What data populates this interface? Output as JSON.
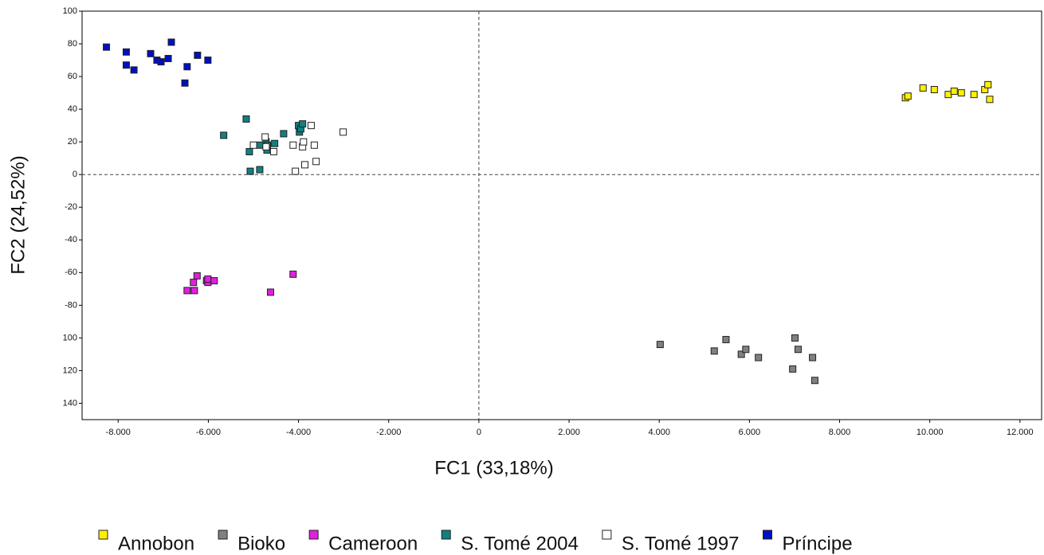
{
  "chart_data": {
    "type": "scatter",
    "x_label": "FC1 (33,18%)",
    "y_label": "FC2 (24,52%)",
    "xlim": [
      -8800,
      12480
    ],
    "ylim": [
      -150,
      100
    ],
    "xticks": [
      {
        "value": -8000,
        "label": "-8.000"
      },
      {
        "value": -6000,
        "label": "-6.000"
      },
      {
        "value": -4000,
        "label": "-4.000"
      },
      {
        "value": -2000,
        "label": "-2.000"
      },
      0,
      {
        "value": 2000,
        "label": "2.000"
      },
      {
        "value": 4000,
        "label": "4.000"
      },
      {
        "value": 6000,
        "label": "6.000"
      },
      {
        "value": 8000,
        "label": "8.000"
      },
      {
        "value": 10000,
        "label": "10.000"
      },
      {
        "value": 12000,
        "label": "12.000"
      }
    ],
    "yticks": [
      100,
      80,
      60,
      40,
      20,
      0,
      -20,
      -40,
      -60,
      -80,
      {
        "value": -100,
        "label": "100"
      },
      {
        "value": -120,
        "label": "120"
      },
      {
        "value": -140,
        "label": "140"
      }
    ],
    "origin_lines": true,
    "legend": "bottom",
    "series": [
      {
        "name": "Annobon",
        "color": "#fff000",
        "x": [
          9460,
          9515,
          9850,
          10100,
          10410,
          10540,
          10700,
          10980,
          11220,
          11290,
          11330
        ],
        "values": [
          47,
          48,
          53,
          52,
          49,
          51,
          50,
          49,
          52,
          55,
          46
        ]
      },
      {
        "name": "Bioko",
        "color": "#808080",
        "x": [
          4020,
          5220,
          5480,
          5820,
          5920,
          6200,
          6960,
          7010,
          7080,
          7400,
          7450
        ],
        "values": [
          -104,
          -108,
          -101,
          -110,
          -107,
          -112,
          -119,
          -100,
          -107,
          -112,
          -126
        ]
      },
      {
        "name": "Cameroon",
        "color": "#e020e0",
        "x": [
          -6470,
          -6330,
          -6310,
          -6250,
          -6040,
          -6010,
          -6010,
          -5870,
          -4620,
          -4120
        ],
        "values": [
          -71,
          -66,
          -71,
          -62,
          -65,
          -66,
          -64,
          -65,
          -72,
          -61
        ]
      },
      {
        "name": "S. Tomé 2004",
        "color": "#108080",
        "x": [
          -5660,
          -5160,
          -5090,
          -5070,
          -4860,
          -4860,
          -4720,
          -4700,
          -4690,
          -4530,
          -4330,
          -4000,
          -3980,
          -3950,
          -3910
        ],
        "values": [
          24,
          34,
          14,
          2,
          18,
          3,
          20,
          15,
          18,
          19,
          25,
          30,
          26,
          28,
          31
        ]
      },
      {
        "name": "S. Tomé 1997",
        "color": "#ffffff",
        "x": [
          -5000,
          -4740,
          -4720,
          -4550,
          -4120,
          -4070,
          -3910,
          -3890,
          -3860,
          -3720,
          -3650,
          -3610,
          -3010
        ],
        "values": [
          18,
          23,
          17,
          14,
          18,
          2,
          17,
          20,
          6,
          30,
          18,
          8,
          26
        ]
      },
      {
        "name": "Príncipe",
        "color": "#0010c0",
        "x": [
          -8260,
          -7820,
          -7820,
          -7650,
          -7280,
          -7140,
          -7050,
          -6890,
          -6820,
          -6520,
          -6470,
          -6240,
          -6010
        ],
        "values": [
          78,
          75,
          67,
          64,
          74,
          70,
          69,
          71,
          81,
          56,
          66,
          73,
          70
        ]
      }
    ]
  }
}
